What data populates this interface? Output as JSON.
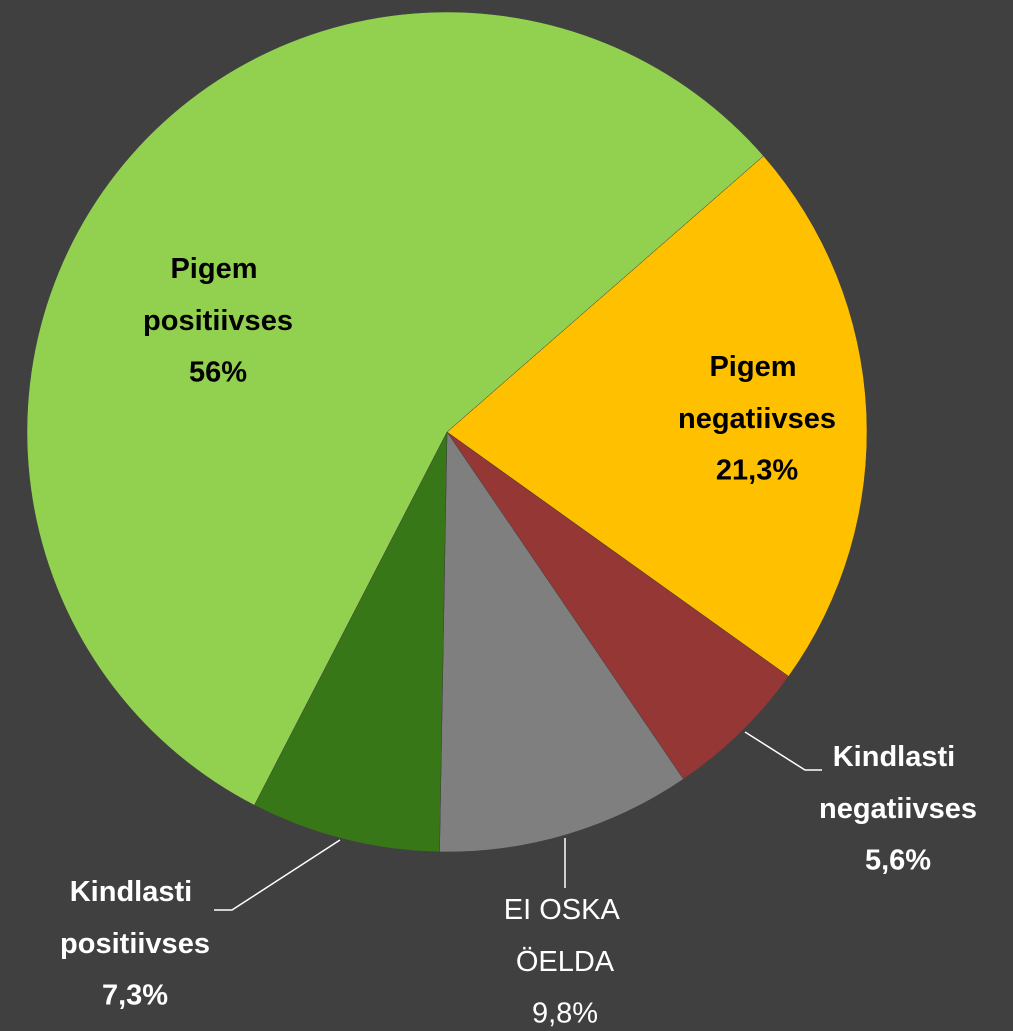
{
  "chart_data": {
    "type": "pie",
    "categories": [
      "Pigem negatiivses",
      "Kindlasti negatiivses",
      "EI OSKA ÖELDA",
      "Kindlasti positiivses",
      "Pigem positiivses"
    ],
    "values": [
      21.3,
      5.6,
      9.8,
      7.3,
      56
    ],
    "value_labels": [
      "21,3%",
      "5,6%",
      "9,8%",
      "7,3%",
      "56%"
    ],
    "colors": [
      "#ffc000",
      "#953735",
      "#7f7f7f",
      "#377717",
      "#92d050"
    ]
  }
}
